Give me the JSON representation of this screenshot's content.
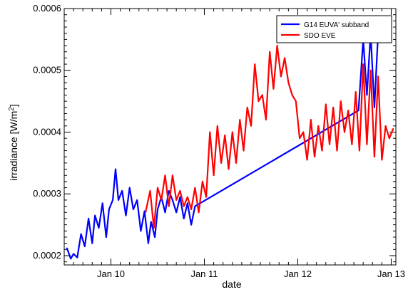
{
  "chart_data": {
    "type": "line",
    "xlabel": "date",
    "ylabel": "irradiance [W/m²]",
    "ylabel_parts": {
      "pre": "irradiance [W/m",
      "sup": "2",
      "post": "]"
    },
    "x_unit": "days (January)",
    "xlim": [
      9.5,
      13.05
    ],
    "ylim": [
      0.000185,
      0.0006
    ],
    "x_ticks": [
      {
        "value": 10,
        "label": "Jan 10"
      },
      {
        "value": 11,
        "label": "Jan 11"
      },
      {
        "value": 12,
        "label": "Jan 12"
      },
      {
        "value": 13,
        "label": "Jan 13"
      }
    ],
    "y_ticks": [
      {
        "value": 0.0002,
        "label": "0.0002"
      },
      {
        "value": 0.0003,
        "label": "0.0003"
      },
      {
        "value": 0.0004,
        "label": "0.0004"
      },
      {
        "value": 0.0005,
        "label": "0.0005"
      },
      {
        "value": 0.0006,
        "label": "0.0006"
      }
    ],
    "grid": false,
    "legend_position": "top-right",
    "series": [
      {
        "name": "G14 EUVA' subband",
        "color": "#0000ff",
        "x": [
          9.53,
          9.57,
          9.6,
          9.64,
          9.68,
          9.72,
          9.76,
          9.8,
          9.83,
          9.87,
          9.91,
          9.95,
          9.98,
          10.02,
          10.05,
          10.08,
          10.12,
          10.16,
          10.2,
          10.24,
          10.28,
          10.32,
          10.36,
          10.4,
          10.43,
          10.47,
          10.5,
          10.54,
          10.58,
          10.62,
          10.66,
          10.7,
          10.74,
          10.78,
          10.82,
          10.86,
          10.9,
          12.65,
          12.7,
          12.74,
          12.78,
          12.82,
          12.86,
          12.9
        ],
        "y": [
          0.000212,
          0.000195,
          0.000203,
          0.000197,
          0.000235,
          0.000215,
          0.00026,
          0.00022,
          0.000265,
          0.000245,
          0.000285,
          0.00023,
          0.000275,
          0.00029,
          0.00034,
          0.00029,
          0.000305,
          0.000265,
          0.00031,
          0.000275,
          0.00029,
          0.00024,
          0.000272,
          0.00022,
          0.000255,
          0.00023,
          0.000275,
          0.000295,
          0.00027,
          0.000305,
          0.00029,
          0.00027,
          0.000295,
          0.00026,
          0.000285,
          0.00025,
          0.00028,
          0.000435,
          0.00055,
          0.00046,
          0.00056,
          0.00044,
          0.00056,
          0.00057
        ]
      },
      {
        "name": "SDO EVE",
        "color": "#ff0000",
        "x": [
          10.37,
          10.42,
          10.46,
          10.5,
          10.54,
          10.58,
          10.62,
          10.66,
          10.7,
          10.74,
          10.78,
          10.82,
          10.86,
          10.9,
          10.94,
          10.98,
          11.02,
          11.06,
          11.1,
          11.14,
          11.18,
          11.22,
          11.26,
          11.3,
          11.34,
          11.38,
          11.42,
          11.46,
          11.5,
          11.54,
          11.58,
          11.62,
          11.66,
          11.7,
          11.74,
          11.78,
          11.82,
          11.86,
          11.9,
          11.94,
          11.98,
          12.02,
          12.06,
          12.1,
          12.14,
          12.18,
          12.22,
          12.26,
          12.3,
          12.34,
          12.38,
          12.42,
          12.46,
          12.5,
          12.54,
          12.58,
          12.62,
          12.66,
          12.7,
          12.74,
          12.78,
          12.82,
          12.86,
          12.9,
          12.94,
          12.98,
          13.02
        ],
        "y": [
          0.00027,
          0.000305,
          0.000245,
          0.00031,
          0.00029,
          0.00033,
          0.00028,
          0.00033,
          0.00029,
          0.000305,
          0.00028,
          0.000295,
          0.000275,
          0.00031,
          0.00027,
          0.00032,
          0.000295,
          0.0004,
          0.00033,
          0.00041,
          0.00035,
          0.000395,
          0.00034,
          0.0004,
          0.00035,
          0.00042,
          0.00037,
          0.00044,
          0.00041,
          0.00051,
          0.00045,
          0.00046,
          0.00042,
          0.00053,
          0.00047,
          0.00054,
          0.00049,
          0.00052,
          0.00048,
          0.00046,
          0.00045,
          0.00039,
          0.0004,
          0.000355,
          0.00042,
          0.00036,
          0.00041,
          0.00037,
          0.000445,
          0.00038,
          0.00044,
          0.00037,
          0.00045,
          0.0004,
          0.000435,
          0.00038,
          0.000465,
          0.00037,
          0.00051,
          0.00038,
          0.0005,
          0.00036,
          0.00049,
          0.000355,
          0.00041,
          0.00039,
          0.000405
        ]
      }
    ]
  }
}
